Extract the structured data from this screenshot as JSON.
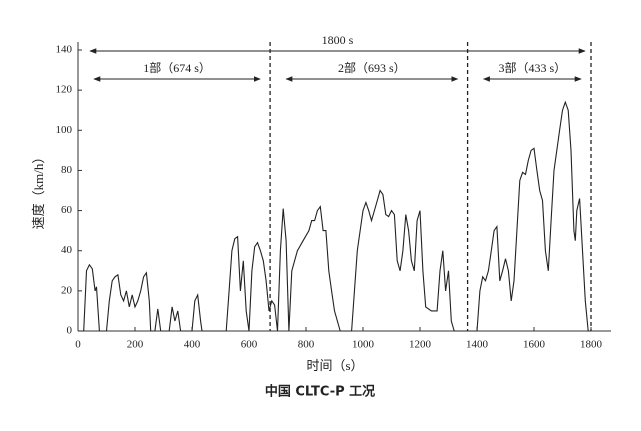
{
  "chart_data": {
    "type": "line",
    "title": "中国 CLTC-P 工况",
    "xlabel": "时间（s）",
    "ylabel": "速度（km/h）",
    "xlim": [
      0,
      1800
    ],
    "ylim": [
      0,
      140
    ],
    "xticks": [
      0,
      200,
      400,
      600,
      800,
      1000,
      1200,
      1400,
      1600,
      1800
    ],
    "yticks": [
      0,
      20,
      40,
      60,
      80,
      100,
      120,
      140
    ],
    "color": "#222222",
    "dividers": [
      674,
      1367,
      1800
    ],
    "annotations": [
      "1800 s",
      "1部（674 s）",
      "2部（693 s）",
      "3部（433 s）"
    ],
    "x": [
      0,
      20,
      30,
      40,
      50,
      60,
      65,
      75,
      100,
      110,
      120,
      130,
      140,
      150,
      160,
      170,
      180,
      190,
      200,
      210,
      220,
      230,
      240,
      250,
      255,
      270,
      280,
      290,
      320,
      330,
      340,
      350,
      360,
      400,
      410,
      420,
      430,
      435,
      520,
      530,
      540,
      550,
      560,
      570,
      580,
      590,
      600,
      610,
      620,
      630,
      640,
      650,
      660,
      670,
      674,
      680,
      690,
      700,
      710,
      720,
      730,
      740,
      750,
      770,
      790,
      810,
      820,
      830,
      840,
      850,
      860,
      870,
      880,
      890,
      900,
      920,
      960,
      980,
      1000,
      1010,
      1020,
      1030,
      1040,
      1050,
      1060,
      1070,
      1080,
      1090,
      1100,
      1110,
      1120,
      1130,
      1140,
      1150,
      1160,
      1170,
      1180,
      1190,
      1200,
      1210,
      1220,
      1240,
      1260,
      1270,
      1280,
      1290,
      1300,
      1310,
      1320,
      1367,
      1400,
      1410,
      1420,
      1430,
      1440,
      1450,
      1460,
      1470,
      1480,
      1490,
      1500,
      1510,
      1520,
      1530,
      1540,
      1550,
      1560,
      1570,
      1580,
      1590,
      1600,
      1610,
      1620,
      1630,
      1640,
      1650,
      1660,
      1670,
      1680,
      1690,
      1700,
      1710,
      1720,
      1730,
      1740,
      1745,
      1750,
      1760,
      1770,
      1780,
      1790,
      1800
    ],
    "y": [
      0,
      0,
      30,
      33,
      31,
      20,
      22,
      0,
      0,
      15,
      25,
      27,
      28,
      18,
      15,
      20,
      12,
      18,
      12,
      15,
      20,
      27,
      29,
      15,
      0,
      0,
      11,
      0,
      0,
      12,
      5,
      10,
      0,
      0,
      15,
      18,
      5,
      0,
      0,
      20,
      40,
      46,
      47,
      20,
      35,
      10,
      0,
      30,
      42,
      44,
      40,
      35,
      25,
      10,
      12,
      15,
      13,
      0,
      40,
      61,
      45,
      0,
      30,
      40,
      45,
      50,
      55,
      55,
      60,
      62,
      50,
      50,
      30,
      20,
      10,
      0,
      0,
      40,
      60,
      64,
      60,
      55,
      60,
      65,
      70,
      68,
      58,
      57,
      60,
      58,
      35,
      30,
      40,
      58,
      50,
      35,
      30,
      55,
      60,
      30,
      12,
      10,
      10,
      30,
      40,
      20,
      30,
      5,
      0,
      0,
      0,
      20,
      27,
      25,
      30,
      40,
      50,
      52,
      25,
      30,
      36,
      30,
      15,
      25,
      50,
      75,
      79,
      78,
      85,
      90,
      91,
      80,
      70,
      65,
      40,
      30,
      55,
      80,
      90,
      100,
      110,
      114,
      110,
      90,
      50,
      45,
      60,
      66,
      40,
      15,
      0,
      0
    ]
  }
}
